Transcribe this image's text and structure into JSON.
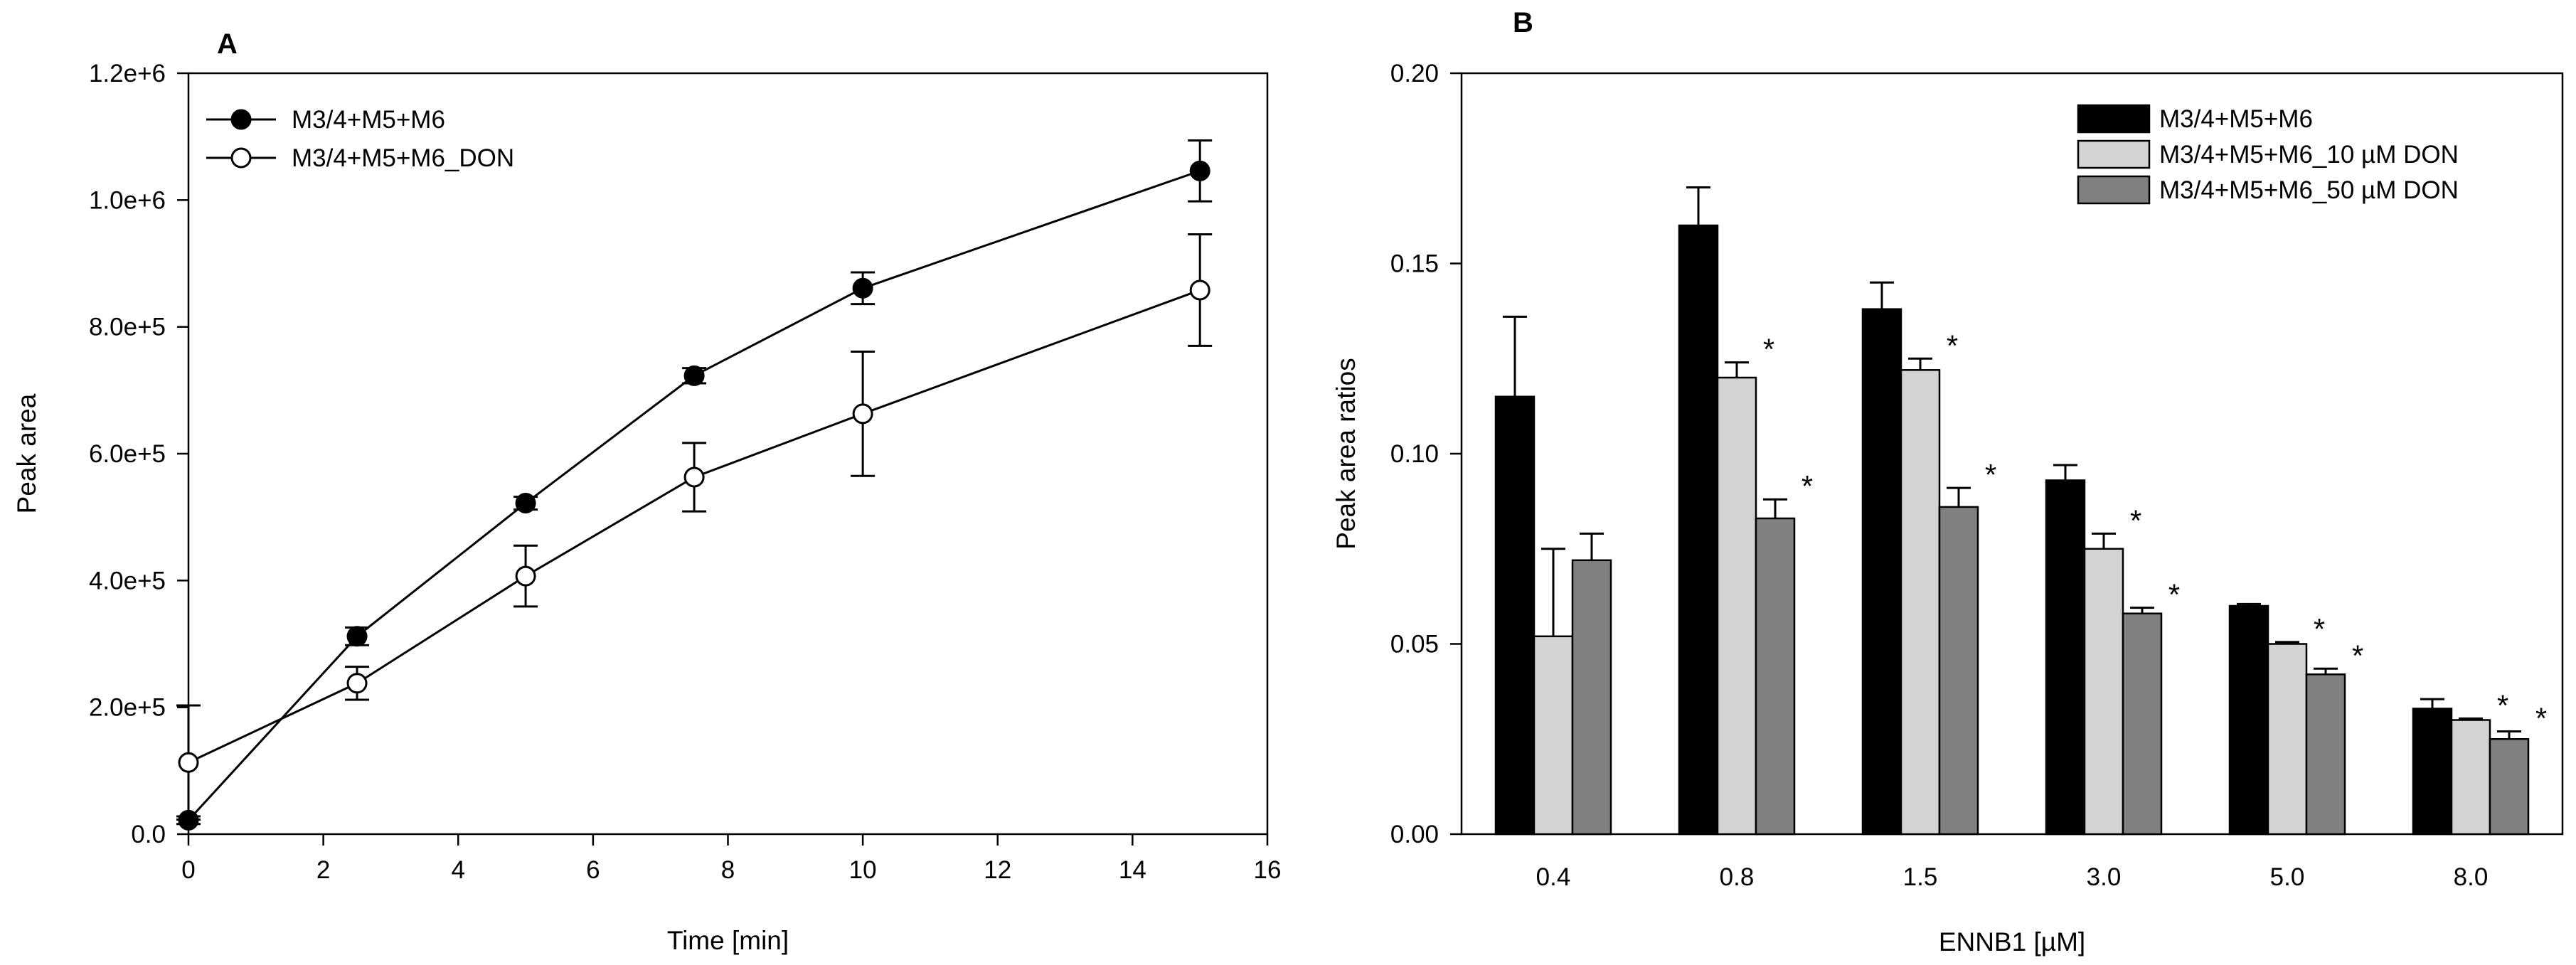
{
  "chart_data": [
    {
      "panel": "A",
      "type": "line",
      "xlabel": "Time [min]",
      "ylabel": "Peak area",
      "xlim": [
        0,
        16
      ],
      "ylim": [
        0,
        1200000
      ],
      "x_ticks": [
        0,
        2,
        4,
        6,
        8,
        10,
        12,
        14,
        16
      ],
      "x_tick_labels": [
        "0",
        "2",
        "4",
        "6",
        "8",
        "10",
        "12",
        "14",
        "16"
      ],
      "y_ticks": [
        0,
        200000,
        400000,
        600000,
        800000,
        1000000,
        1200000
      ],
      "y_tick_labels": [
        "0.0",
        "2.0e+5",
        "4.0e+5",
        "6.0e+5",
        "8.0e+5",
        "1.0e+6",
        "1.2e+6"
      ],
      "grid": false,
      "legend_position": "top-left",
      "series": [
        {
          "name": "M3/4+M5+M6",
          "marker": "filled-circle",
          "x": [
            0,
            2.5,
            5,
            7.5,
            10,
            15
          ],
          "y": [
            22000,
            312000,
            522000,
            723000,
            861000,
            1046000
          ],
          "error": [
            6000,
            14000,
            10000,
            12000,
            25000,
            48000
          ]
        },
        {
          "name": "M3/4+M5+M6_DON",
          "marker": "open-circle",
          "x": [
            0,
            2.5,
            5,
            7.5,
            10,
            15
          ],
          "y": [
            113000,
            238000,
            407000,
            563000,
            663000,
            858000
          ],
          "error": [
            90000,
            26000,
            48000,
            54000,
            98000,
            88000
          ]
        }
      ]
    },
    {
      "panel": "B",
      "type": "bar",
      "xlabel": "ENNB1 [µM]",
      "ylabel": "Peak area ratios",
      "categories": [
        "0.4",
        "0.8",
        "1.5",
        "3.0",
        "5.0",
        "8.0"
      ],
      "ylim": [
        0,
        0.2
      ],
      "y_ticks": [
        0,
        0.05,
        0.1,
        0.15,
        0.2
      ],
      "y_tick_labels": [
        "0.00",
        "0.05",
        "0.10",
        "0.15",
        "0.20"
      ],
      "grid": false,
      "legend_position": "top-right",
      "significance_marker": "*",
      "series": [
        {
          "name": "M3/4+M5+M6",
          "color": "#000000",
          "values": [
            0.115,
            0.16,
            0.138,
            0.093,
            0.06,
            0.033
          ],
          "error": [
            0.021,
            0.01,
            0.007,
            0.004,
            0.0005,
            0.0025
          ],
          "significant": [
            false,
            false,
            false,
            false,
            false,
            false
          ]
        },
        {
          "name": "M3/4+M5+M6_10 µM DON",
          "color": "#d3d3d3",
          "values": [
            0.052,
            0.12,
            0.122,
            0.075,
            0.05,
            0.03
          ],
          "error": [
            0.023,
            0.004,
            0.003,
            0.004,
            0.0005,
            0.0004
          ],
          "significant": [
            false,
            true,
            true,
            true,
            true,
            true
          ]
        },
        {
          "name": "M3/4+M5+M6_50 µM DON",
          "color": "#808080",
          "values": [
            0.072,
            0.083,
            0.086,
            0.058,
            0.042,
            0.025
          ],
          "error": [
            0.007,
            0.005,
            0.005,
            0.0015,
            0.0015,
            0.002
          ],
          "significant": [
            false,
            true,
            true,
            true,
            true,
            true
          ]
        }
      ]
    }
  ]
}
